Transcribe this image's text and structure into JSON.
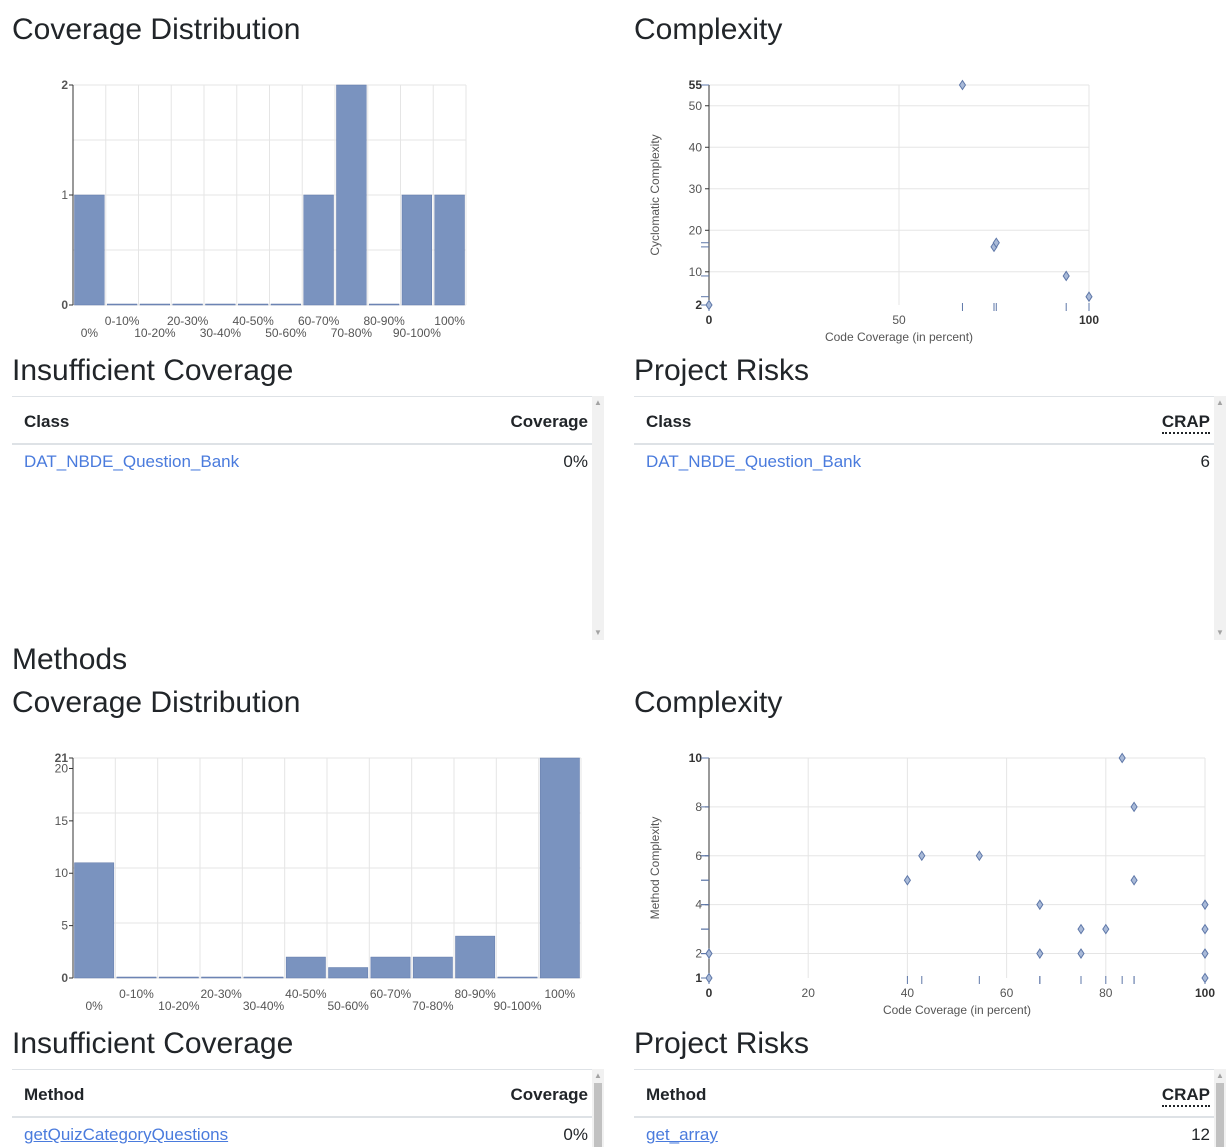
{
  "classes": {
    "coverage_title": "Coverage Distribution",
    "complexity_title": "Complexity",
    "insufficient": {
      "title": "Insufficient Coverage",
      "col1": "Class",
      "col2": "Coverage",
      "rows": [
        {
          "name": "DAT_NBDE_Question_Bank",
          "value": "0%"
        }
      ]
    },
    "risks": {
      "title": "Project Risks",
      "col1": "Class",
      "col2": "CRAP",
      "rows": [
        {
          "name": "DAT_NBDE_Question_Bank",
          "value": "6"
        }
      ]
    }
  },
  "methods": {
    "section_title": "Methods",
    "coverage_title": "Coverage Distribution",
    "complexity_title": "Complexity",
    "insufficient": {
      "title": "Insufficient Coverage",
      "col1": "Method",
      "col2": "Coverage",
      "rows": [
        {
          "name": "getQuizCategoryQuestions",
          "value": "0%"
        }
      ]
    },
    "risks": {
      "title": "Project Risks",
      "col1": "Method",
      "col2": "CRAP",
      "rows": [
        {
          "name": "get_array",
          "value": "12"
        }
      ]
    }
  },
  "colors": {
    "bar": "#7a93bf",
    "bar_stroke": "#5e77a8",
    "grid": "#e5e5e5",
    "link": "#4a7bdd"
  },
  "chart_data": [
    {
      "id": "class-coverage",
      "type": "bar",
      "categories": [
        "0%",
        "0-10%",
        "10-20%",
        "20-30%",
        "30-40%",
        "40-50%",
        "50-60%",
        "60-70%",
        "70-80%",
        "80-90%",
        "90-100%",
        "100%"
      ],
      "values": [
        1,
        0,
        0,
        0,
        0,
        0,
        0,
        1,
        2,
        0,
        1,
        1
      ],
      "yticks": [
        0,
        1,
        2
      ],
      "ylim": [
        0,
        2
      ]
    },
    {
      "id": "class-complexity",
      "type": "scatter",
      "xlabel": "Code Coverage (in percent)",
      "ylabel": "Cyclomatic Complexity",
      "xlim": [
        0,
        100
      ],
      "ylim": [
        2,
        55
      ],
      "xticks": [
        0,
        50,
        100
      ],
      "yticks": [
        2,
        10,
        20,
        30,
        40,
        50,
        55
      ],
      "points": [
        [
          0,
          2
        ],
        [
          66.7,
          55
        ],
        [
          75,
          16
        ],
        [
          75.6,
          17
        ],
        [
          94,
          9
        ],
        [
          100,
          4
        ]
      ]
    },
    {
      "id": "method-coverage",
      "type": "bar",
      "categories": [
        "0%",
        "0-10%",
        "10-20%",
        "20-30%",
        "30-40%",
        "40-50%",
        "50-60%",
        "60-70%",
        "70-80%",
        "80-90%",
        "90-100%",
        "100%"
      ],
      "values": [
        11,
        0,
        0,
        0,
        0,
        2,
        1,
        2,
        2,
        4,
        0,
        21
      ],
      "yticks": [
        0,
        5,
        10,
        15,
        20,
        21
      ],
      "ylim": [
        0,
        21
      ]
    },
    {
      "id": "method-complexity",
      "type": "scatter",
      "xlabel": "Code Coverage (in percent)",
      "ylabel": "Method Complexity",
      "xlim": [
        0,
        100
      ],
      "ylim": [
        1,
        10
      ],
      "xticks": [
        0,
        20,
        40,
        60,
        80,
        100
      ],
      "yticks": [
        1,
        2,
        4,
        6,
        8,
        10
      ],
      "points": [
        [
          0,
          1
        ],
        [
          0,
          2
        ],
        [
          40,
          5
        ],
        [
          42.9,
          6
        ],
        [
          54.5,
          6
        ],
        [
          66.7,
          2
        ],
        [
          66.7,
          4
        ],
        [
          75,
          2
        ],
        [
          75,
          3
        ],
        [
          80,
          3
        ],
        [
          83.3,
          10
        ],
        [
          85.7,
          8
        ],
        [
          85.7,
          5
        ],
        [
          100,
          1
        ],
        [
          100,
          2
        ],
        [
          100,
          3
        ],
        [
          100,
          4
        ]
      ]
    }
  ]
}
